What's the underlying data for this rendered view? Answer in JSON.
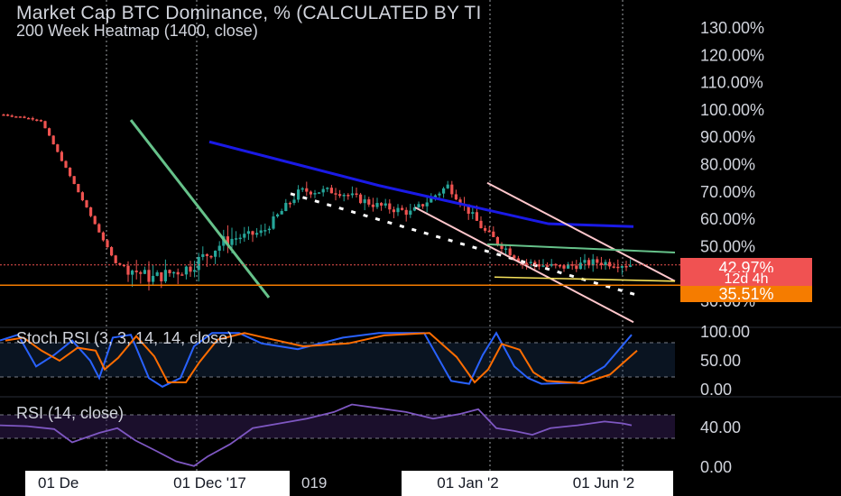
{
  "header": {
    "title": "Market Cap BTC Dominance, % (CALCULATED BY TI",
    "subtitle": "200 Week Heatmap (1400, close)"
  },
  "indicators": {
    "stoch_label": "Stoch RSI (3, 3, 14, 14, close)",
    "rsi_label": "RSI (14, close)"
  },
  "price_axis": {
    "ticks": [
      "130.00%",
      "120.00%",
      "110.00%",
      "100.00%",
      "90.00%",
      "80.00%",
      "70.00%",
      "60.00%",
      "50.00%",
      "40.00%",
      "30.00%"
    ]
  },
  "stoch_axis": {
    "ticks": [
      "100.00",
      "50.00",
      "0.00"
    ]
  },
  "rsi_axis": {
    "ticks": [
      "40.00",
      "0.00"
    ]
  },
  "tags": {
    "current_price": "42.97%",
    "countdown": "12d 4h",
    "level": "35.51%"
  },
  "time_axis": {
    "label_1": "01 De",
    "label_2": "01 Dec '17",
    "label_3": "019",
    "label_4": "01 Jan '2",
    "label_5": "01 Jun '2"
  },
  "colors": {
    "background": "#000000",
    "bull": "#26a69a",
    "bear": "#ef5350",
    "ma200": "#1a1ae6",
    "trendline": "#66c28a",
    "channel": "#ffc7cc",
    "stoch_k": "#2962ff",
    "stoch_d": "#ff6d00",
    "rsi": "#7e57c2",
    "level_line": "#f57c00",
    "support_line": "#f7e35c"
  },
  "chart_data": {
    "type": "candlestick",
    "title": "Market Cap BTC Dominance, % (CALCULATED BY TI",
    "y_unit": "%",
    "ylim": [
      30,
      130
    ],
    "series": [
      {
        "name": "Market Cap BTC Dominance",
        "key_points": [
          [
            0,
            98
          ],
          [
            1,
            96
          ],
          [
            2,
            70
          ],
          [
            3,
            44
          ],
          [
            4,
            38
          ],
          [
            5,
            42
          ],
          [
            6,
            52
          ],
          [
            7,
            55
          ],
          [
            8,
            70
          ],
          [
            9,
            70
          ],
          [
            10,
            65
          ],
          [
            11,
            62
          ],
          [
            12,
            72
          ],
          [
            13,
            55
          ],
          [
            14,
            44
          ],
          [
            15,
            42
          ],
          [
            16,
            44
          ],
          [
            17,
            42.97
          ]
        ]
      },
      {
        "name": "200 Week Heatmap (1400, close)",
        "key_points": [
          [
            0,
            88
          ],
          [
            1,
            80
          ],
          [
            2,
            72
          ],
          [
            3,
            65
          ],
          [
            4,
            58
          ],
          [
            5,
            57
          ]
        ]
      }
    ],
    "current_value": 42.97,
    "level": 35.51,
    "stoch_rsi": {
      "range": [
        0,
        100
      ],
      "levels": [
        80,
        20
      ]
    },
    "rsi": {
      "range": [
        0,
        100
      ],
      "levels": [
        70,
        30
      ]
    },
    "x_tick_labels": [
      "01 De",
      "01 Dec '17",
      "019",
      "01 Jan '2",
      "01 Jun '2"
    ]
  }
}
